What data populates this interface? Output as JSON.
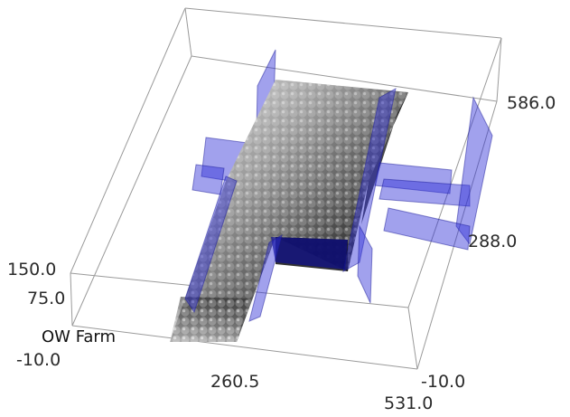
{
  "scene": {
    "label": "OW Farm",
    "colors": {
      "panel": "#2f2fd6",
      "panel_dark": "#10108a",
      "frame": "#9a9a9a"
    }
  },
  "axes": {
    "x_ticks": [
      "260.5",
      "531.0"
    ],
    "y_ticks": [
      "586.0",
      "288.0",
      "-10.0"
    ],
    "z_ticks": [
      "150.0",
      "75.0",
      "-10.0"
    ]
  }
}
